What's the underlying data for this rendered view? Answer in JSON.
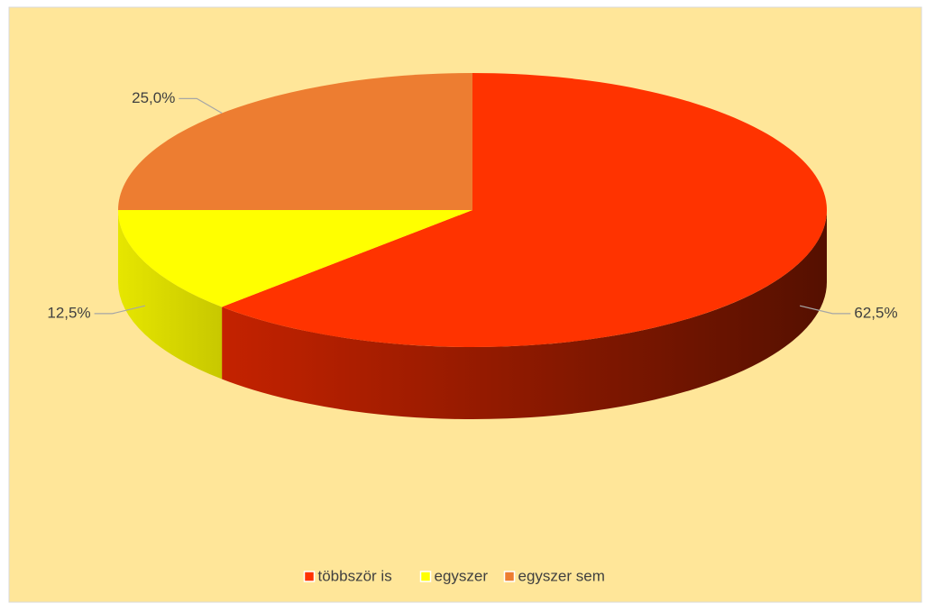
{
  "chart_data": {
    "type": "pie",
    "categories": [
      "többször is",
      "egyszer",
      "egyszer sem"
    ],
    "values": [
      62.5,
      12.5,
      25
    ],
    "value_labels": [
      "62,5%",
      "12,5%",
      "25,0%"
    ],
    "colors": [
      "#FF3300",
      "#FFFF00",
      "#ED7D31"
    ],
    "legend": "bottom"
  }
}
